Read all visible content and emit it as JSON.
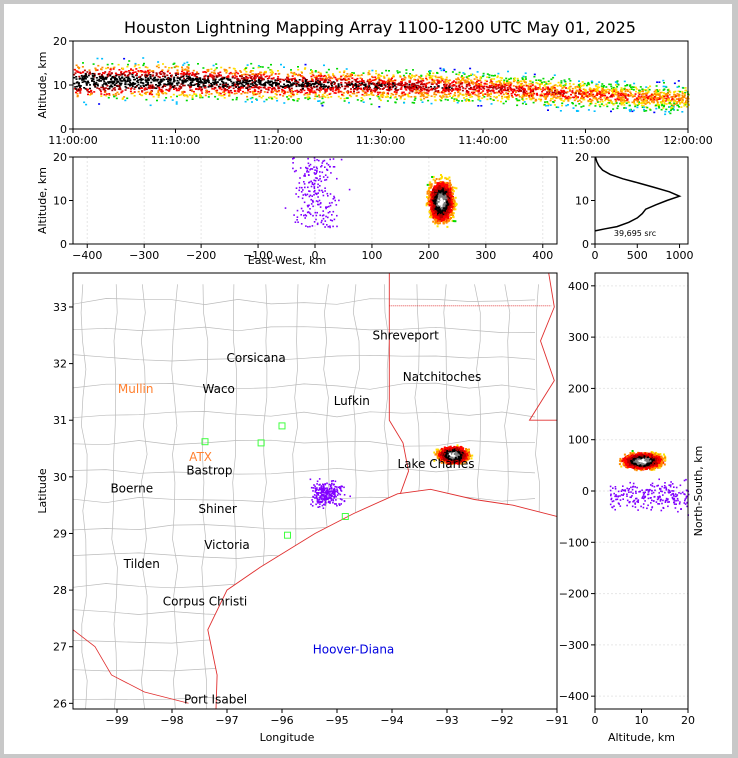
{
  "title": "Houston Lightning Mapping Array 1100-1200 UTC May 01, 2025",
  "colors": {
    "density": [
      "#0000ff",
      "#00bfff",
      "#00d800",
      "#ffe000",
      "#ff8c00",
      "#ff0000",
      "#b00000",
      "#000000",
      "#808080",
      "#ffffff"
    ],
    "sparse": "#8000ff",
    "coast": "#e03030",
    "county": "#bbbbbb",
    "station_outside": "#ff8030",
    "station_green": "#40ff40",
    "mcs_gold": "#e0a020",
    "station_blue": "#0000e0"
  },
  "chart_data": [
    {
      "type": "scatter",
      "name": "time-height",
      "xlabel": "",
      "ylabel": "Altitude, km",
      "xticks": [
        "11:00:00",
        "11:10:00",
        "11:20:00",
        "11:30:00",
        "11:40:00",
        "11:50:00",
        "12:00:00"
      ],
      "xlim": [
        0,
        60
      ],
      "ylim": [
        0,
        20
      ],
      "yticks": [
        0,
        10,
        20
      ],
      "density_core": [
        [
          0,
          11
        ],
        [
          10,
          11
        ],
        [
          20,
          10.5
        ],
        [
          30,
          10
        ],
        [
          40,
          9.5
        ],
        [
          50,
          8
        ],
        [
          60,
          7
        ]
      ]
    },
    {
      "type": "scatter",
      "name": "east-west",
      "xlabel": "East-West, km",
      "ylabel": "Altitude, km",
      "xlim": [
        -425,
        425
      ],
      "ylim": [
        0,
        20
      ],
      "xticks": [
        -400,
        -300,
        -200,
        -100,
        0,
        100,
        200,
        300,
        400
      ],
      "yticks": [
        0,
        10,
        20
      ],
      "storm_center": [
        220,
        10
      ]
    },
    {
      "type": "line",
      "name": "altitude-histogram",
      "xlim": [
        0,
        1100
      ],
      "ylim": [
        0,
        20
      ],
      "xticks": [
        0,
        500,
        1000
      ],
      "yticks": [
        0,
        10,
        20
      ],
      "annotation": "39,695 src",
      "altitude": [
        3,
        3.5,
        4,
        5,
        6,
        7,
        8,
        9,
        10,
        11,
        12,
        13,
        14,
        15,
        16,
        17,
        18,
        19,
        20
      ],
      "count": [
        0,
        120,
        260,
        400,
        500,
        560,
        600,
        720,
        850,
        1000,
        880,
        700,
        520,
        330,
        180,
        90,
        45,
        20,
        5
      ]
    },
    {
      "type": "scatter",
      "name": "plan-view",
      "xlabel": "Longitude",
      "ylabel": "Latitude",
      "xlim": [
        -99.8,
        -91
      ],
      "ylim": [
        25.9,
        33.6
      ],
      "xticks": [
        -99,
        -98,
        -97,
        -96,
        -95,
        -94,
        -93,
        -92,
        -91
      ],
      "yticks": [
        26,
        27,
        28,
        29,
        30,
        31,
        32,
        33
      ],
      "storm_center": [
        -92.9,
        30.4
      ],
      "cities": [
        {
          "name": "Shreveport",
          "lon": -93.75,
          "lat": 32.5
        },
        {
          "name": "Corsicana",
          "lon": -96.47,
          "lat": 32.1
        },
        {
          "name": "Natchitoches",
          "lon": -93.09,
          "lat": 31.76
        },
        {
          "name": "Waco",
          "lon": -97.15,
          "lat": 31.55
        },
        {
          "name": "Lufkin",
          "lon": -94.73,
          "lat": 31.34
        },
        {
          "name": "Lake Charles",
          "lon": -93.2,
          "lat": 30.23
        },
        {
          "name": "Bastrop",
          "lon": -97.32,
          "lat": 30.11
        },
        {
          "name": "Boerne",
          "lon": -98.73,
          "lat": 29.79
        },
        {
          "name": "Shiner",
          "lon": -97.17,
          "lat": 29.43
        },
        {
          "name": "Victoria",
          "lon": -97.0,
          "lat": 28.8
        },
        {
          "name": "Tilden",
          "lon": -98.55,
          "lat": 28.46
        },
        {
          "name": "Corpus Christi",
          "lon": -97.4,
          "lat": 27.8
        },
        {
          "name": "Port Isabel",
          "lon": -97.21,
          "lat": 26.07
        }
      ],
      "stations": [
        {
          "name": "Mullin",
          "lon": -98.66,
          "lat": 31.55,
          "color": "#ff8030"
        },
        {
          "name": "ATX",
          "lon": -97.48,
          "lat": 30.35,
          "color": "#ff8030"
        },
        {
          "name": "Hoover-Diana",
          "lon": -94.7,
          "lat": 26.95,
          "color": "#0000e0"
        }
      ]
    },
    {
      "type": "scatter",
      "name": "north-south",
      "xlabel": "Altitude, km",
      "ylabel": "North-South, km",
      "xlim": [
        0,
        20
      ],
      "ylim": [
        -425,
        425
      ],
      "xticks": [
        0,
        10,
        20
      ],
      "yticks": [
        -400,
        -300,
        -200,
        -100,
        0,
        100,
        200,
        300,
        400
      ],
      "storm_center": [
        10,
        60
      ]
    }
  ]
}
